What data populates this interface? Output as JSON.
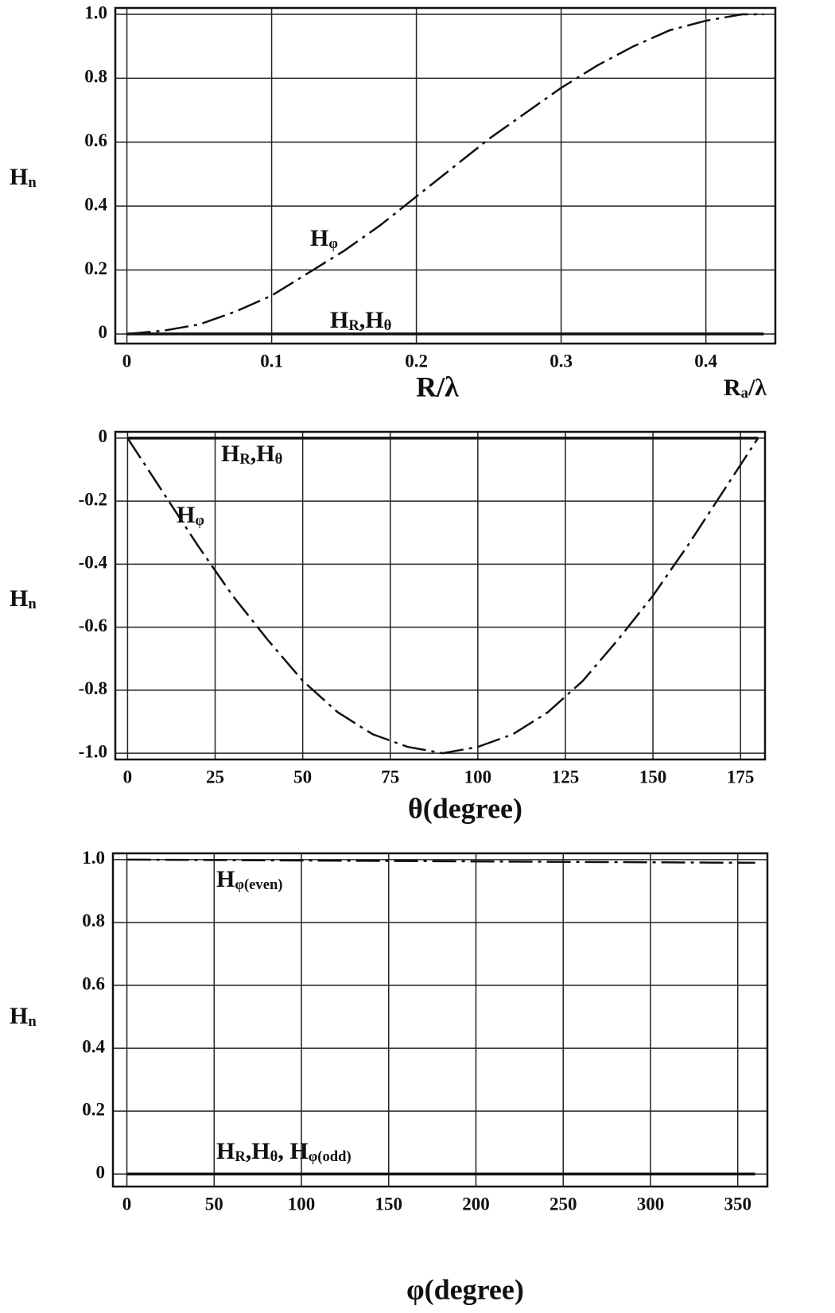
{
  "chart_data": [
    {
      "type": "line",
      "ylabel_parts": [
        "H",
        "n"
      ],
      "xlabel": "R/λ",
      "xlabel_right_parts": [
        "R",
        "a",
        "/λ"
      ],
      "x": [
        0,
        0.025,
        0.05,
        0.075,
        0.1,
        0.125,
        0.15,
        0.175,
        0.2,
        0.225,
        0.25,
        0.275,
        0.3,
        0.325,
        0.35,
        0.375,
        0.4,
        0.425,
        0.44
      ],
      "series": [
        {
          "name_parts": [
            "H",
            "φ"
          ],
          "color": "#111111",
          "dashed": true,
          "values": [
            0,
            0.01,
            0.03,
            0.07,
            0.12,
            0.19,
            0.26,
            0.34,
            0.43,
            0.52,
            0.61,
            0.69,
            0.77,
            0.84,
            0.9,
            0.95,
            0.98,
            1.0,
            1.0
          ]
        },
        {
          "name_parts": [
            "H",
            "R",
            ",H",
            "θ"
          ],
          "color": "#111111",
          "dashed": false,
          "values": [
            0,
            0,
            0,
            0,
            0,
            0,
            0,
            0,
            0,
            0,
            0,
            0,
            0,
            0,
            0,
            0,
            0,
            0,
            0
          ]
        }
      ],
      "xlim": [
        -0.008,
        0.448
      ],
      "ylim": [
        -0.03,
        1.02
      ],
      "xticks": [
        0,
        0.1,
        0.2,
        0.3,
        0.4
      ],
      "yticks": [
        0,
        0.2,
        0.4,
        0.6,
        0.8,
        {
          "value": 1,
          "label": "1.0"
        }
      ],
      "grid": true
    },
    {
      "type": "line",
      "ylabel_parts": [
        "H",
        "n"
      ],
      "xlabel": "θ(degree)",
      "x": [
        0,
        10,
        20,
        30,
        40,
        50,
        60,
        70,
        80,
        90,
        100,
        110,
        120,
        130,
        140,
        150,
        160,
        170,
        180
      ],
      "series": [
        {
          "name_parts": [
            "H",
            "R",
            ",H",
            "θ"
          ],
          "color": "#111111",
          "dashed": false,
          "values": [
            0,
            0,
            0,
            0,
            0,
            0,
            0,
            0,
            0,
            0,
            0,
            0,
            0,
            0,
            0,
            0,
            0,
            0,
            0
          ]
        },
        {
          "name_parts": [
            "H",
            "φ"
          ],
          "color": "#111111",
          "dashed": true,
          "values": [
            0,
            -0.17,
            -0.34,
            -0.5,
            -0.64,
            -0.77,
            -0.87,
            -0.94,
            -0.98,
            -1,
            -0.98,
            -0.94,
            -0.87,
            -0.77,
            -0.64,
            -0.5,
            -0.34,
            -0.17,
            0
          ]
        }
      ],
      "xlim": [
        -3.5,
        182
      ],
      "ylim": [
        -1.02,
        0.02
      ],
      "xticks": [
        0,
        25,
        50,
        75,
        100,
        125,
        150,
        175
      ],
      "yticks": [
        {
          "value": -1,
          "label": "-1.0"
        },
        -0.8,
        -0.6,
        -0.4,
        -0.2,
        0
      ],
      "grid": true
    },
    {
      "type": "line",
      "ylabel_parts": [
        "H",
        "n"
      ],
      "xlabel": "φ(degree)",
      "x": [
        0,
        360
      ],
      "series": [
        {
          "name_parts": [
            "H",
            "φ(even)"
          ],
          "color": "#111111",
          "dashed": true,
          "values": [
            1,
            0.99
          ]
        },
        {
          "name_parts": [
            "H",
            "R",
            ",H",
            "θ",
            ", H",
            "φ(odd)"
          ],
          "color": "#111111",
          "dashed": false,
          "values": [
            0,
            0
          ]
        }
      ],
      "xlim": [
        -8,
        367
      ],
      "ylim": [
        -0.04,
        1.02
      ],
      "xticks": [
        0,
        50,
        100,
        150,
        200,
        250,
        300,
        350
      ],
      "yticks": [
        0,
        0.2,
        0.4,
        0.6,
        0.8,
        {
          "value": 1,
          "label": "1.0"
        }
      ],
      "grid": true
    }
  ]
}
